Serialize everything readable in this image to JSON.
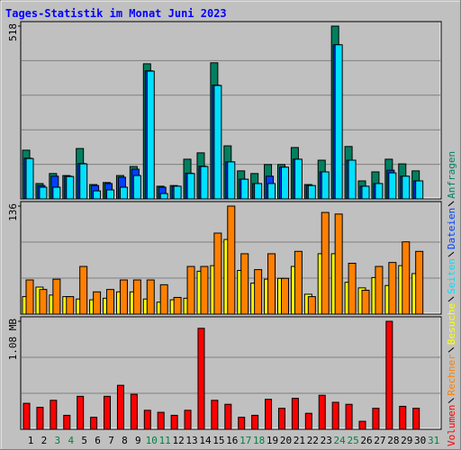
{
  "chart_data": [
    {
      "type": "bar",
      "title": "Tages-Statistik im Monat Juni 2023",
      "ylim": [
        0,
        518
      ],
      "yticks": [
        518
      ],
      "series": [
        {
          "name": "Anfragen",
          "color": "#008060",
          "values": [
            146,
            46,
            76,
            70,
            151,
            43,
            49,
            70,
            97,
            405,
            38,
            40,
            119,
            138,
            408,
            159,
            84,
            76,
            103,
            103,
            154,
            43,
            116,
            518,
            157,
            54,
            81,
            119,
            105,
            84,
            null
          ]
        },
        {
          "name": "Dateien",
          "color": "#0040ff",
          "values": [
            122,
            40,
            68,
            68,
            106,
            40,
            46,
            65,
            89,
            384,
            35,
            38,
            77,
            98,
            341,
            111,
            59,
            46,
            68,
            95,
            119,
            40,
            81,
            462,
            116,
            38,
            46,
            86,
            68,
            54,
            null
          ]
        },
        {
          "name": "Seiten",
          "color": "#00e0ff",
          "values": [
            121,
            35,
            35,
            67,
            105,
            24,
            27,
            35,
            70,
            383,
            16,
            38,
            76,
            97,
            340,
            111,
            59,
            46,
            46,
            95,
            119,
            40,
            81,
            462,
            116,
            38,
            46,
            78,
            68,
            54,
            null
          ]
        }
      ]
    },
    {
      "type": "bar",
      "ylim": [
        0,
        136
      ],
      "yticks": [
        136
      ],
      "series": [
        {
          "name": "Besuche",
          "color": "#ffff00",
          "values": [
            22,
            34,
            24,
            22,
            19,
            18,
            20,
            28,
            28,
            19,
            15,
            18,
            20,
            54,
            61,
            94,
            55,
            39,
            44,
            45,
            60,
            25,
            76,
            76,
            40,
            33,
            46,
            36,
            61,
            51,
            null
          ]
        },
        {
          "name": "Rechner",
          "color": "#ff8000",
          "values": [
            43,
            31,
            44,
            22,
            60,
            28,
            31,
            43,
            43,
            43,
            37,
            21,
            60,
            60,
            102,
            136,
            76,
            56,
            76,
            45,
            79,
            22,
            128,
            126,
            64,
            30,
            60,
            65,
            91,
            79,
            null
          ]
        }
      ]
    },
    {
      "type": "bar",
      "ylim": [
        0,
        1.08
      ],
      "yticks": [
        {
          "value": 1.08,
          "label": "1.08 MB"
        }
      ],
      "series": [
        {
          "name": "Volumen",
          "color": "#ff0000",
          "values": [
            0.26,
            0.22,
            0.29,
            0.14,
            0.33,
            0.12,
            0.33,
            0.44,
            0.35,
            0.19,
            0.17,
            0.14,
            0.19,
            1.01,
            0.29,
            0.25,
            0.12,
            0.14,
            0.3,
            0.21,
            0.31,
            0.16,
            0.34,
            0.27,
            0.25,
            0.08,
            0.21,
            1.08,
            0.23,
            0.21,
            null
          ]
        }
      ],
      "categories": [
        "1",
        "2",
        "3",
        "4",
        "5",
        "6",
        "7",
        "8",
        "9",
        "10",
        "11",
        "12",
        "13",
        "14",
        "15",
        "16",
        "17",
        "18",
        "19",
        "20",
        "21",
        "22",
        "23",
        "24",
        "25",
        "26",
        "27",
        "28",
        "29",
        "30",
        "31"
      ],
      "category_colors": [
        "#000000",
        "#000000",
        "#008040",
        "#008040",
        "#000000",
        "#000000",
        "#000000",
        "#000000",
        "#000000",
        "#008040",
        "#008040",
        "#000000",
        "#000000",
        "#000000",
        "#000000",
        "#000000",
        "#008040",
        "#008040",
        "#000000",
        "#000000",
        "#000000",
        "#000000",
        "#000000",
        "#008040",
        "#008040",
        "#000000",
        "#000000",
        "#000000",
        "#000000",
        "#000000",
        "#008040"
      ]
    }
  ]
}
